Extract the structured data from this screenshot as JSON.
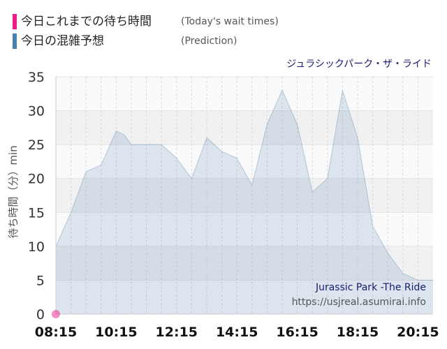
{
  "legend": {
    "items": [
      {
        "label": "今日これまでの待ち時間",
        "label_en": "(Today's wait times)",
        "color": "#ee1b8a"
      },
      {
        "label": "今日の混雑予想",
        "label_en": "(Prediction)",
        "color": "#4a7fad"
      }
    ]
  },
  "chart_data": {
    "type": "area",
    "title": "ジュラシックパーク・ザ・ライド",
    "ylabel": "待ち時間（分）min",
    "ylim": [
      0,
      35
    ],
    "yticks": [
      "0",
      "5",
      "10",
      "15",
      "20",
      "25",
      "30",
      "35"
    ],
    "xticks": [
      "08:15",
      "10:15",
      "12:15",
      "14:15",
      "16:15",
      "18:15",
      "20:15"
    ],
    "grid": true,
    "series": [
      {
        "name": "今日の混雑予想",
        "color": "#4a7fad",
        "x": [
          "08:15",
          "08:45",
          "09:15",
          "09:45",
          "10:00",
          "10:15",
          "10:30",
          "10:45",
          "11:15",
          "11:45",
          "12:15",
          "12:45",
          "13:15",
          "13:45",
          "14:15",
          "14:30",
          "14:45",
          "15:15",
          "15:45",
          "16:15",
          "16:45",
          "17:15",
          "17:45",
          "18:15",
          "18:45",
          "19:15",
          "19:45",
          "20:15",
          "20:45"
        ],
        "values": [
          10,
          15,
          21,
          22,
          24.5,
          27,
          26.5,
          25,
          25,
          25,
          23,
          20,
          26,
          24,
          23,
          21,
          19,
          28,
          33,
          28,
          18,
          20,
          33,
          26,
          13,
          9,
          6,
          5,
          5
        ]
      },
      {
        "name": "今日これまでの待ち時間",
        "color": "#ee1b8a",
        "x": [
          "08:15"
        ],
        "values": [
          0
        ]
      }
    ],
    "annotation": {
      "en_title": "Jurassic Park -The Ride",
      "url": "https://usjreal.asumirai.info"
    }
  }
}
